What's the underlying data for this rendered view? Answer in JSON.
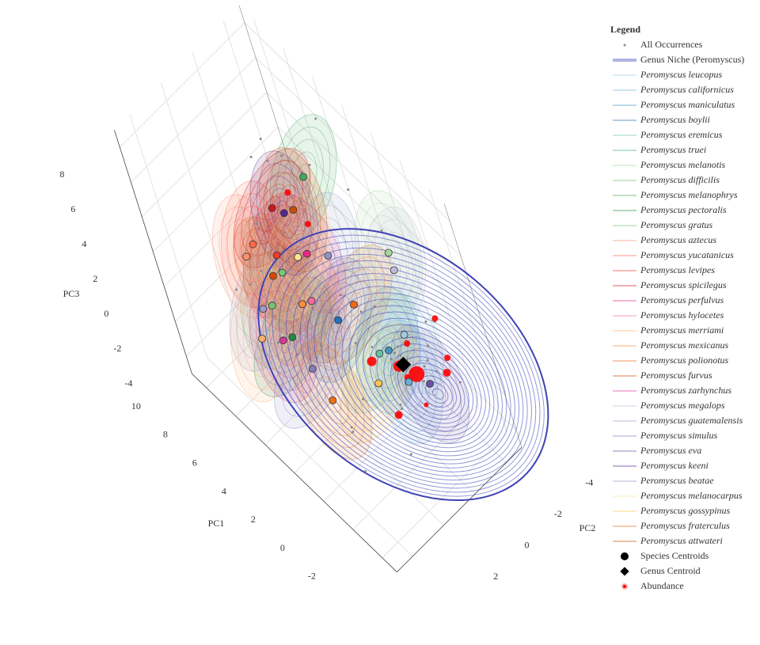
{
  "chart_data": {
    "type": "scatter3d",
    "legend_title": "Legend",
    "legend_position": "right",
    "grid": true,
    "xlabel": "PC1",
    "ylabel": "PC2",
    "zlabel": "PC3",
    "xlim": [
      -3,
      11
    ],
    "ylim": [
      -5,
      3
    ],
    "zlim": [
      -5,
      9
    ],
    "xticks": [
      -2,
      0,
      2,
      4,
      6,
      8,
      10
    ],
    "yticks": [
      -4,
      -2,
      0,
      2
    ],
    "zticks": [
      -4,
      -2,
      0,
      2,
      4,
      6,
      8
    ],
    "occurrences": {
      "name": "All Occurrences",
      "color": "#888888",
      "x": [
        0,
        1,
        -1,
        0.5,
        2,
        1.5,
        -0.5,
        0,
        1,
        2,
        3,
        -1,
        0.5,
        1.5,
        2.5,
        0,
        -0.5,
        1,
        4,
        5,
        6,
        5.5,
        4.5,
        6.5,
        7,
        5,
        4,
        6,
        3.5,
        7.5,
        8,
        2,
        3,
        1,
        0,
        -1,
        2,
        3.5,
        5,
        6,
        7,
        8.5,
        1,
        2,
        0.5,
        -0.5,
        4,
        3
      ],
      "y": [
        -3,
        -2,
        -4,
        -3.5,
        -1,
        -2.5,
        -2,
        -1,
        -4,
        -3,
        -3,
        -3,
        -1.5,
        -4.5,
        -2,
        -4.2,
        -1,
        0,
        0,
        1,
        0,
        -1,
        1.5,
        1,
        -2,
        -3,
        -4,
        -4.5,
        2,
        -3,
        -2.5,
        -4,
        -4.5,
        1,
        1.5,
        -0.5,
        0.5,
        -1,
        2,
        2,
        -3.5,
        -2,
        -2,
        -3,
        -1,
        -2.5,
        1,
        -1.5
      ],
      "z": [
        -1,
        0,
        -2,
        -1.5,
        0.5,
        -1,
        0,
        -2,
        -3,
        -2,
        0,
        1,
        -2.5,
        -1,
        1,
        0.5,
        -1,
        -1,
        3,
        4,
        5,
        4,
        3,
        2,
        6,
        6.5,
        5,
        7,
        2,
        5,
        6,
        2,
        3,
        -2,
        -3,
        -3,
        -3,
        1,
        1,
        3,
        4,
        5,
        -0.5,
        -1.5,
        1.5,
        -1,
        0,
        2
      ]
    },
    "genus_niche": {
      "name": "Genus Niche (Peromyscus)",
      "color": "#3f43b5"
    },
    "species": [
      {
        "name": "Peromyscus leucopus",
        "color": "#9ecae1",
        "x": 1,
        "y": -3,
        "z": 0
      },
      {
        "name": "Peromyscus californicus",
        "color": "#6baed6",
        "x": 0,
        "y": -2,
        "z": -1
      },
      {
        "name": "Peromyscus maniculatus",
        "color": "#4292c6",
        "x": 1,
        "y": -2,
        "z": 0
      },
      {
        "name": "Peromyscus boylii",
        "color": "#2171b5",
        "x": 3,
        "y": -1,
        "z": 1
      },
      {
        "name": "Peromyscus eremicus",
        "color": "#66c2a4",
        "x": 2,
        "y": -2,
        "z": -1
      },
      {
        "name": "Peromyscus truei",
        "color": "#41ae76",
        "x": 4,
        "y": 0,
        "z": 2
      },
      {
        "name": "Peromyscus melanotis",
        "color": "#a1d99b",
        "x": 2,
        "y": -4,
        "z": 3
      },
      {
        "name": "Peromyscus difficilis",
        "color": "#74c476",
        "x": 5,
        "y": 1,
        "z": 2
      },
      {
        "name": "Peromyscus melanophrys",
        "color": "#41ab5d",
        "x": 6,
        "y": -3,
        "z": 5
      },
      {
        "name": "Peromyscus pectoralis",
        "color": "#238b45",
        "x": 4,
        "y": 1,
        "z": 1
      },
      {
        "name": "Peromyscus gratus",
        "color": "#78c679",
        "x": 5,
        "y": 0,
        "z": 3
      },
      {
        "name": "Peromyscus aztecus",
        "color": "#fc9272",
        "x": 6,
        "y": 1,
        "z": 4
      },
      {
        "name": "Peromyscus yucatanicus",
        "color": "#fb6a4a",
        "x": 7,
        "y": 0,
        "z": 3
      },
      {
        "name": "Peromyscus levipes",
        "color": "#ef3b2c",
        "x": 5,
        "y": 0,
        "z": 4
      },
      {
        "name": "Peromyscus spicilegus",
        "color": "#cb181d",
        "x": 6,
        "y": -1,
        "z": 5
      },
      {
        "name": "Peromyscus perfulvus",
        "color": "#e7298a",
        "x": 4,
        "y": -1,
        "z": 4
      },
      {
        "name": "Peromyscus hylocetes",
        "color": "#f768a1",
        "x": 3,
        "y": 0,
        "z": 3
      },
      {
        "name": "Peromyscus merriami",
        "color": "#fdae6b",
        "x": 5,
        "y": 2,
        "z": 1
      },
      {
        "name": "Peromyscus mexicanus",
        "color": "#fd8d3c",
        "x": 4,
        "y": 0,
        "z": 2
      },
      {
        "name": "Peromyscus polionotus",
        "color": "#f16913",
        "x": 3,
        "y": -2,
        "z": 1
      },
      {
        "name": "Peromyscus furvus",
        "color": "#d94801",
        "x": 6,
        "y": 0,
        "z": 2
      },
      {
        "name": "Peromyscus zarhynchus",
        "color": "#dd3497",
        "x": 5,
        "y": 1,
        "z": 0
      },
      {
        "name": "Peromyscus megalops",
        "color": "#bcbddc",
        "x": 2,
        "y": -4,
        "z": 2
      },
      {
        "name": "Peromyscus guatemalensis",
        "color": "#9e9ac8",
        "x": 6,
        "y": 1,
        "z": 1
      },
      {
        "name": "Peromyscus simulus",
        "color": "#807dba",
        "x": 3,
        "y": 1,
        "z": 0
      },
      {
        "name": "Peromyscus eva",
        "color": "#6a51a3",
        "x": 0,
        "y": -3,
        "z": -2
      },
      {
        "name": "Peromyscus keeni",
        "color": "#54278f",
        "x": 7,
        "y": -2,
        "z": 3
      },
      {
        "name": "Peromyscus beatae",
        "color": "#8c96c6",
        "x": 4,
        "y": -2,
        "z": 3
      },
      {
        "name": "Peromyscus melanocarpus",
        "color": "#fee391",
        "x": 5,
        "y": -1,
        "z": 3
      },
      {
        "name": "Peromyscus gossypinus",
        "color": "#fec44f",
        "x": 1,
        "y": -1,
        "z": -1
      },
      {
        "name": "Peromyscus fraterculus",
        "color": "#ec7014",
        "x": 2,
        "y": 1,
        "z": -1
      },
      {
        "name": "Peromyscus attwateri",
        "color": "#cc4c02",
        "x": 6,
        "y": -2,
        "z": 4
      }
    ],
    "species_centroids": {
      "name": "Species Centroids",
      "color": "#000000"
    },
    "genus_centroid": {
      "name": "Genus Centroid",
      "color": "#000000",
      "x": 0,
      "y": -2,
      "z": 0
    },
    "abundance": {
      "name": "Abundance",
      "color": "#ff0000",
      "x": [
        0,
        -1,
        0.5,
        1,
        -0.5,
        0,
        2,
        1,
        -1,
        0.5,
        6,
        5
      ],
      "y": [
        -2.5,
        -3.5,
        -2,
        -3,
        -4,
        -1,
        -1.5,
        -2.5,
        -2,
        -4.5,
        -2,
        -2
      ],
      "z": [
        -1,
        -1,
        -0.5,
        -0.5,
        -1,
        -2,
        -1,
        -2,
        -1.5,
        0,
        5,
        4
      ],
      "values": [
        8,
        3,
        5,
        2,
        2,
        3,
        4,
        2,
        1,
        2,
        2,
        2
      ]
    }
  }
}
